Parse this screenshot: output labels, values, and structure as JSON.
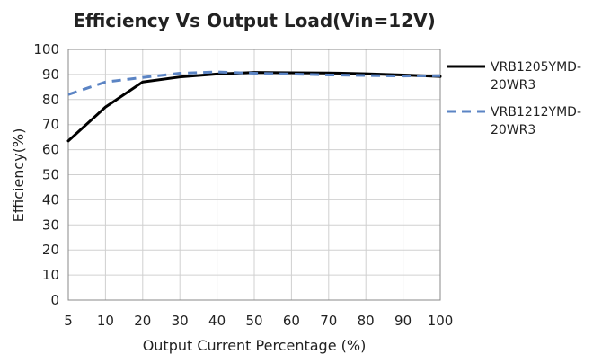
{
  "chart_data": {
    "type": "line",
    "title": "Efficiency Vs Output Load(Vin=12V)",
    "xlabel": "Output Current Percentage (%)",
    "ylabel": "Efficiency(%)",
    "x_ticks": [
      5,
      10,
      20,
      30,
      40,
      50,
      60,
      70,
      80,
      90,
      100
    ],
    "y_ticks": [
      0,
      10,
      20,
      30,
      40,
      50,
      60,
      70,
      80,
      90,
      100
    ],
    "ylim": [
      0,
      100
    ],
    "x": [
      5,
      10,
      20,
      30,
      40,
      50,
      60,
      70,
      80,
      90,
      100
    ],
    "grid": true,
    "legend_position": "right",
    "series": [
      {
        "name": "VRB1205YMD-20WR3",
        "style": "solid",
        "color": "#000000",
        "values": [
          63.5,
          77,
          87,
          89,
          90.2,
          90.8,
          90.7,
          90.6,
          90.3,
          89.8,
          89.2
        ]
      },
      {
        "name": "VRB1212YMD-20WR3",
        "style": "dashed",
        "color": "#5b84c4",
        "values": [
          82,
          87,
          88.8,
          90.5,
          91,
          90.5,
          90.2,
          89.8,
          89.6,
          89.4,
          89.5
        ]
      }
    ]
  }
}
